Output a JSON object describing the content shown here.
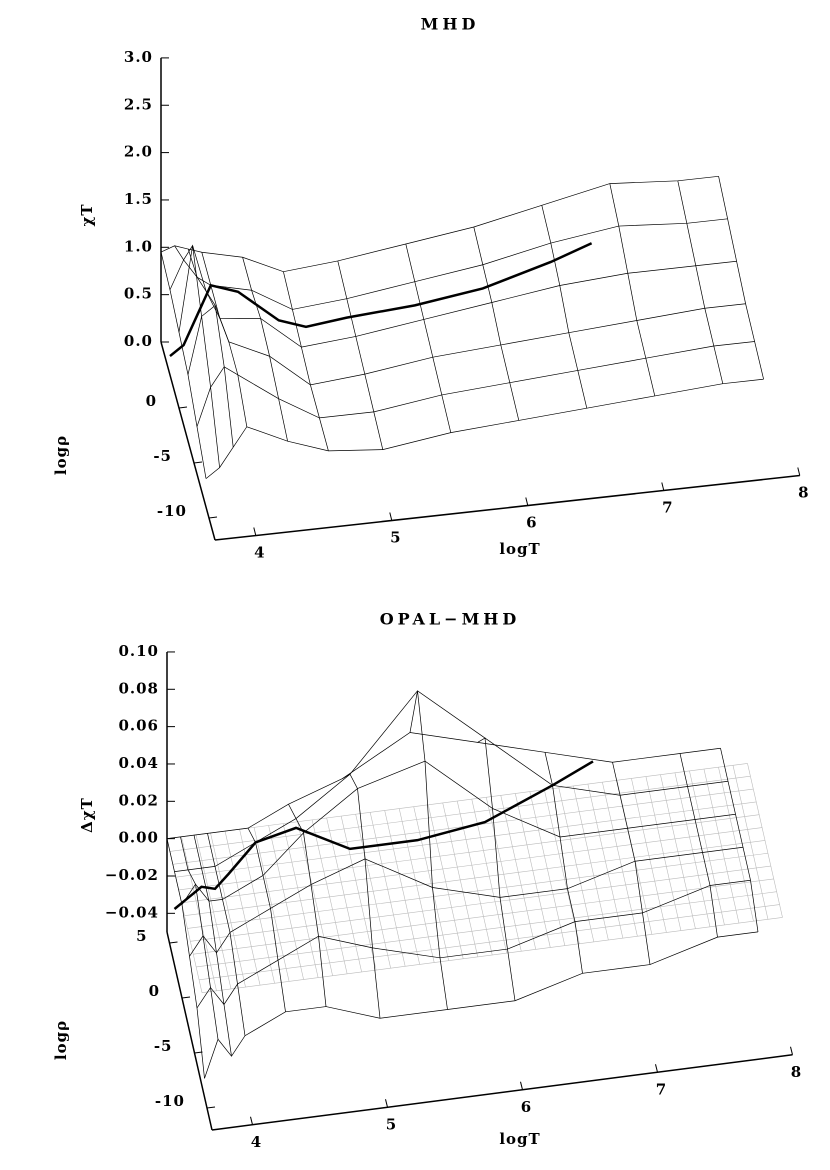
{
  "chart_data": [
    {
      "type": "surface",
      "title": "MHD",
      "xlabel": "logT",
      "ylabel": "logρ",
      "zlabel": "χT",
      "xlim": [
        3.7,
        8
      ],
      "ylim": [
        -12,
        6
      ],
      "zlim": [
        0,
        3
      ],
      "xticks": [
        4,
        5,
        6,
        7,
        8
      ],
      "yticks": [
        0,
        -5,
        -10
      ],
      "zticks": [
        {
          "value": 0,
          "label": "0.0"
        },
        {
          "value": 0.5,
          "label": "0.5"
        },
        {
          "value": 1,
          "label": "1.0"
        },
        {
          "value": 1.5,
          "label": "1.5"
        },
        {
          "value": 2,
          "label": "2.0"
        },
        {
          "value": 2.5,
          "label": "2.5"
        },
        {
          "value": 3,
          "label": "3.0"
        }
      ],
      "color": "#000000",
      "surface_x": [
        3.7,
        3.8,
        3.9,
        4.0,
        4.3,
        4.6,
        5.0,
        5.5,
        6.0,
        6.5,
        7.0,
        7.5,
        7.8
      ],
      "surface_y": [
        -9,
        -6,
        -3,
        0,
        3,
        6
      ],
      "surface_z": [
        [
          0.3,
          0.4,
          0.6,
          0.8,
          0.6,
          0.45,
          0.4,
          0.5,
          0.55,
          0.6,
          0.65,
          0.7,
          0.7
        ],
        [
          0.5,
          0.9,
          1.1,
          1.0,
          0.7,
          0.45,
          0.45,
          0.55,
          0.6,
          0.65,
          0.7,
          0.75,
          0.75
        ],
        [
          0.7,
          1.3,
          1.4,
          1.0,
          0.8,
          0.45,
          0.5,
          0.6,
          0.65,
          0.7,
          0.75,
          0.8,
          0.8
        ],
        [
          0.8,
          1.7,
          1.2,
          0.9,
          0.85,
          0.5,
          0.55,
          0.65,
          0.75,
          0.85,
          0.9,
          0.9,
          0.9
        ],
        [
          0.9,
          1.2,
          1.0,
          0.9,
          0.8,
          0.55,
          0.6,
          0.7,
          0.8,
          0.95,
          1.05,
          1.0,
          1.0
        ],
        [
          0.95,
          1.0,
          0.95,
          0.9,
          0.8,
          0.6,
          0.65,
          0.75,
          0.85,
          1.0,
          1.15,
          1.1,
          1.1
        ]
      ],
      "curve": {
        "x": [
          3.7,
          3.8,
          3.9,
          4.0,
          4.2,
          4.5,
          4.7,
          5.0,
          5.5,
          6.0,
          6.5,
          6.8
        ],
        "values": [
          0.2,
          0.3,
          0.6,
          0.9,
          0.8,
          0.45,
          0.35,
          0.4,
          0.45,
          0.55,
          0.75,
          0.9
        ]
      }
    },
    {
      "type": "surface",
      "title": "OPAL−MHD",
      "xlabel": "logT",
      "ylabel": "logρ",
      "zlabel": "ΔχT",
      "xlim": [
        3.7,
        8
      ],
      "ylim": [
        -12,
        6
      ],
      "zlim": [
        -0.05,
        0.1
      ],
      "xticks": [
        4,
        5,
        6,
        7,
        8
      ],
      "yticks": [
        5,
        0,
        -5,
        -10
      ],
      "zticks": [
        {
          "value": -0.04,
          "label": "−0.04"
        },
        {
          "value": -0.02,
          "label": "−0.02"
        },
        {
          "value": 0,
          "label": "0.00"
        },
        {
          "value": 0.02,
          "label": "0.02"
        },
        {
          "value": 0.04,
          "label": "0.04"
        },
        {
          "value": 0.06,
          "label": "0.06"
        },
        {
          "value": 0.08,
          "label": "0.08"
        },
        {
          "value": 0.1,
          "label": "0.10"
        }
      ],
      "color": "#000000",
      "surface_x": [
        3.7,
        3.8,
        3.9,
        4.0,
        4.3,
        4.6,
        5.0,
        5.5,
        6.0,
        6.5,
        7.0,
        7.5,
        7.8
      ],
      "surface_y": [
        -9,
        -6,
        -3,
        0,
        3,
        6
      ],
      "surface_z": [
        [
          -0.04,
          -0.02,
          -0.03,
          -0.02,
          -0.01,
          -0.01,
          -0.02,
          -0.02,
          -0.02,
          -0.01,
          -0.01,
          0.0,
          0.0
        ],
        [
          -0.02,
          -0.01,
          -0.02,
          -0.01,
          0.0,
          0.01,
          0.0,
          -0.01,
          -0.01,
          0.0,
          0.0,
          0.01,
          0.01
        ],
        [
          -0.01,
          0.0,
          -0.01,
          0.0,
          0.01,
          0.02,
          0.03,
          0.01,
          0.0,
          0.0,
          0.01,
          0.01,
          0.01
        ],
        [
          0.0,
          0.01,
          0.0,
          0.0,
          0.01,
          0.03,
          0.05,
          0.06,
          0.03,
          0.01,
          0.01,
          0.01,
          0.01
        ],
        [
          0.0,
          0.0,
          0.0,
          0.0,
          0.01,
          0.02,
          0.04,
          0.08,
          0.05,
          0.02,
          0.01,
          0.01,
          0.01
        ],
        [
          0.0,
          0.0,
          0.0,
          0.0,
          0.0,
          0.01,
          0.02,
          0.04,
          0.03,
          0.02,
          0.01,
          0.01,
          0.01
        ]
      ],
      "curve": {
        "x": [
          3.7,
          3.8,
          3.9,
          4.0,
          4.1,
          4.3,
          4.6,
          5.0,
          5.5,
          6.0,
          6.5,
          6.8
        ],
        "values": [
          -0.02,
          -0.015,
          -0.01,
          -0.012,
          -0.005,
          0.01,
          0.015,
          0.0,
          0.0,
          0.005,
          0.02,
          0.03
        ]
      }
    }
  ]
}
